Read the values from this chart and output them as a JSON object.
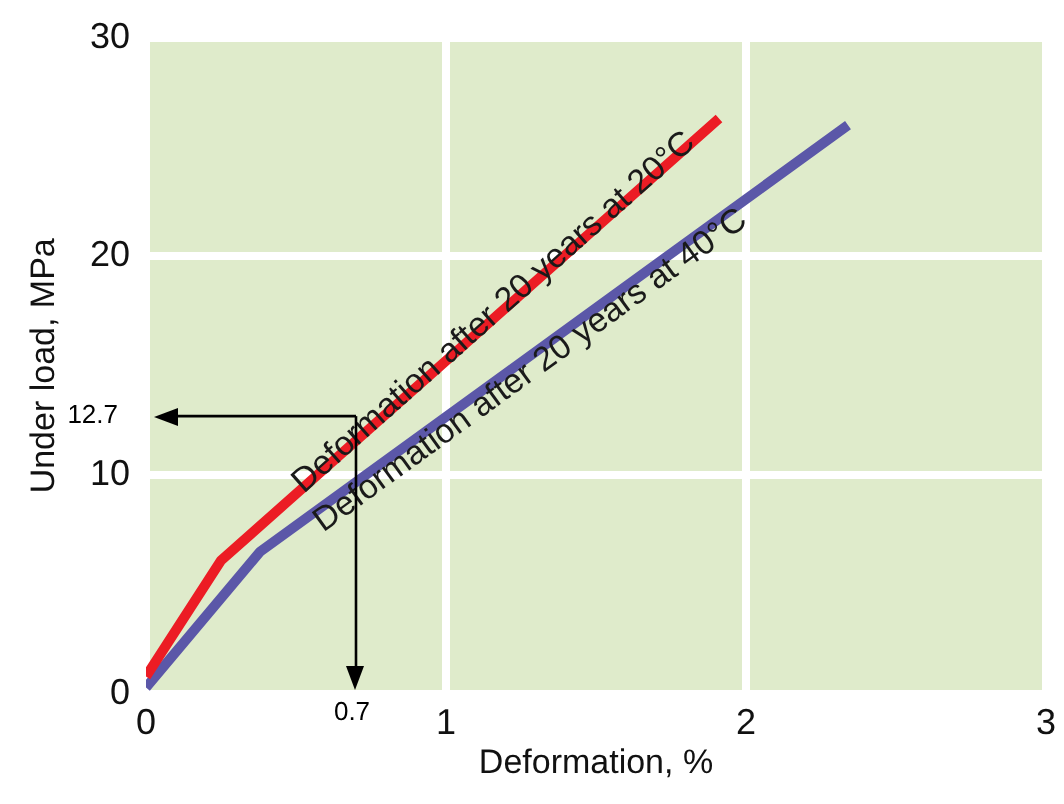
{
  "chart_data": {
    "type": "line",
    "xlabel": "Deformation, %",
    "ylabel": "Under load, MPa",
    "xlim": [
      0,
      3
    ],
    "xticks": [
      0,
      1,
      2,
      3
    ],
    "ylim": [
      0,
      30
    ],
    "yticks": [
      0,
      10,
      20,
      30
    ],
    "grid": true,
    "legend": false,
    "marker": "none",
    "line_style": "solid",
    "series": [
      {
        "name": "Deformation after 20 years at 20°C",
        "color": "#ec1c24",
        "x": [
          0,
          0.25,
          1.91
        ],
        "values": [
          0.8,
          6.1,
          26.3
        ]
      },
      {
        "name": "Deformation after 20 years at 40°C",
        "color": "#5b57a8",
        "x": [
          0,
          0.38,
          2.34
        ],
        "values": [
          0.3,
          6.5,
          26.0
        ]
      }
    ],
    "ref_lines": [
      {
        "axis": "y",
        "value": 12.7,
        "label": "12.7",
        "color": "#000000"
      },
      {
        "axis": "x",
        "value": 0.7,
        "label": "0.7",
        "color": "#000000"
      }
    ]
  }
}
